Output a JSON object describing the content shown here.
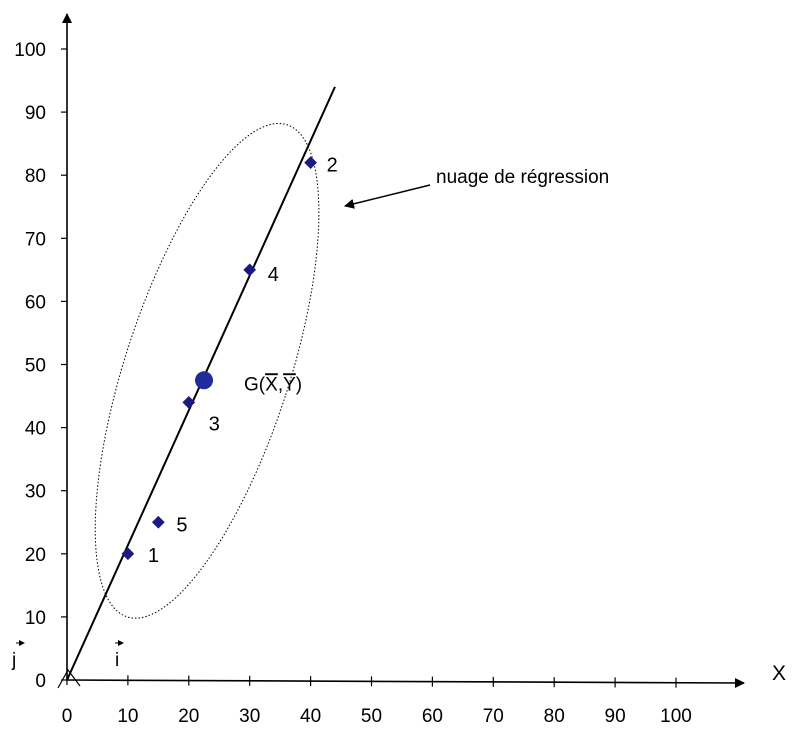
{
  "chart_data": {
    "type": "scatter",
    "title": "",
    "xlabel": "X",
    "ylabel": "",
    "xlim": [
      0,
      100
    ],
    "ylim": [
      0,
      100
    ],
    "x_ticks": [
      "0",
      "10",
      "20",
      "30",
      "40",
      "50",
      "60",
      "70",
      "80",
      "90",
      "100"
    ],
    "y_ticks": [
      "0",
      "10",
      "20",
      "30",
      "40",
      "50",
      "60",
      "70",
      "80",
      "90",
      "100"
    ],
    "grid": false,
    "points": [
      {
        "label": "1",
        "x": 10,
        "y": 20
      },
      {
        "label": "2",
        "x": 40,
        "y": 82
      },
      {
        "label": "3",
        "x": 20,
        "y": 44
      },
      {
        "label": "4",
        "x": 30,
        "y": 65
      },
      {
        "label": "5",
        "x": 15,
        "y": 25
      }
    ],
    "centroid": {
      "x": 22.5,
      "y": 47.5
    },
    "centroid_label": {
      "prefix": "G(",
      "xbar": "X",
      "comma": ",",
      "ybar": "Y",
      "suffix": ")"
    },
    "regression_line": {
      "x1": 0,
      "y1": 0,
      "x2": 44,
      "y2": 94
    },
    "ellipse": {
      "cx": 23,
      "cy": 49,
      "rx_data": 13.5,
      "ry_data": 41,
      "rotation_deg": 18
    },
    "annotation": "nuage de régression",
    "unit_vectors": {
      "i": "i",
      "j": "j"
    },
    "colors": {
      "points": "#1a1a80",
      "centroid": "#1f2c9c",
      "axis": "#000000"
    }
  }
}
